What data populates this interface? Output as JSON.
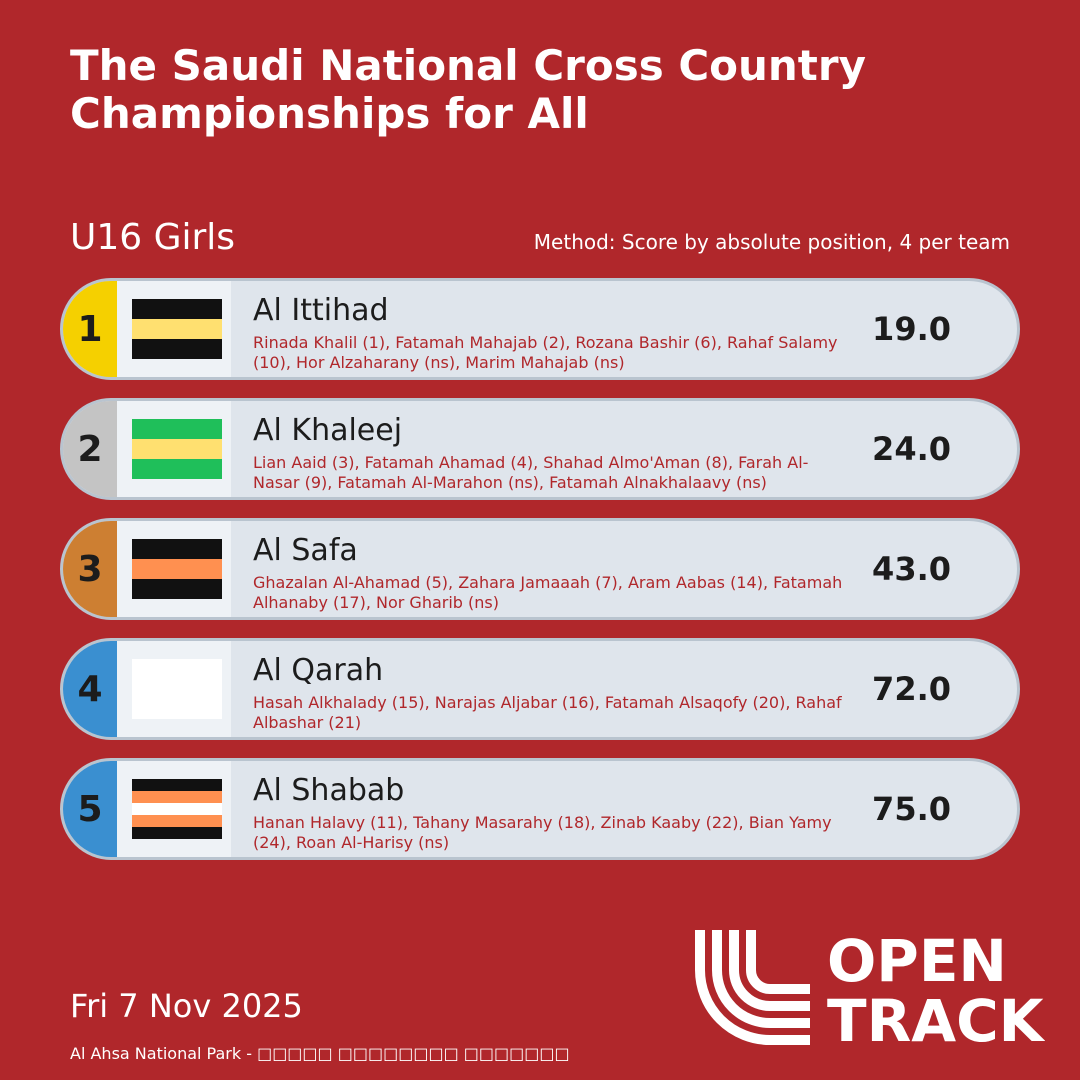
{
  "header": {
    "title": "The Saudi National Cross Country Championships for All",
    "category": "U16 Girls",
    "method": "Method: Score by absolute position, 4 per team"
  },
  "results": [
    {
      "rank": "1",
      "team": "Al Ittihad",
      "athletes": "Rinada Khalil (1), Fatamah Mahajab (2), Rozana Bashir (6), Rahaf Salamy (10), Hor Alzaharany (ns), Marim Mahajab (ns)",
      "score": "19.0",
      "rank_color": "#f5d000",
      "flag_stripes": [
        "#111111",
        "#ffe070",
        "#111111"
      ]
    },
    {
      "rank": "2",
      "team": "Al Khaleej",
      "athletes": "Lian Aaid (3), Fatamah Ahamad (4), Shahad Almo'Aman (8), Farah Al-Nasar (9), Fatamah Al-Marahon (ns), Fatamah Alnakhalaavy (ns)",
      "score": "24.0",
      "rank_color": "#c4c4c4",
      "flag_stripes": [
        "#1fbf5a",
        "#ffe070",
        "#1fbf5a"
      ]
    },
    {
      "rank": "3",
      "team": "Al Safa",
      "athletes": "Ghazalan Al-Ahamad (5), Zahara Jamaaah (7), Aram Aabas (14), Fatamah Alhanaby (17), Nor Gharib (ns)",
      "score": "43.0",
      "rank_color": "#cd7f32",
      "flag_stripes": [
        "#111111",
        "#ff9050",
        "#111111"
      ]
    },
    {
      "rank": "4",
      "team": "Al Qarah",
      "athletes": "Hasah Alkhalady (15), Narajas Aljabar (16), Fatamah Alsaqofy (20), Rahaf Albashar (21)",
      "score": "72.0",
      "rank_color": "#3a8fd0",
      "flag_stripes": [
        "#ffffff"
      ]
    },
    {
      "rank": "5",
      "team": "Al Shabab",
      "athletes": "Hanan Halavy (11), Tahany Masarahy (18), Zinab Kaaby (22), Bian Yamy (24), Roan Al-Harisy (ns)",
      "score": "75.0",
      "rank_color": "#3a8fd0",
      "flag_stripes": [
        "#111111",
        "#ff9050",
        "#ffffff",
        "#ff9050",
        "#111111"
      ]
    }
  ],
  "footer": {
    "date": "Fri 7 Nov 2025",
    "venue": "Al Ahsa National Park - □□□□□ □□□□□□□□ □□□□□□□",
    "logo_line1": "OPEN",
    "logo_line2": "TRACK"
  },
  "colors": {
    "background": "#b0272b",
    "row_background": "#dfe5ec",
    "athlete_text": "#b0272b"
  }
}
